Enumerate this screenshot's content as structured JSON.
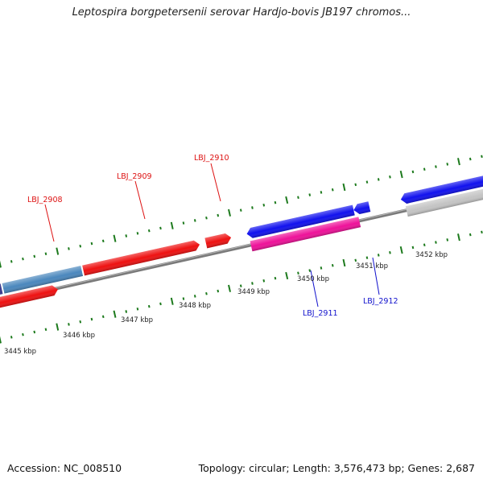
{
  "title": "Leptospira borgpetersenii serovar Hardjo-bovis JB197 chromos...",
  "footer": {
    "accession": "Accession: NC_008510",
    "summary": "Topology: circular; Length: 3,576,473 bp; Genes: 2,687"
  },
  "colors": {
    "backbone": "#7a7a7a",
    "tick": "#1d7a1d",
    "forward_gene_red": "#ee1111",
    "reverse_gene_blue": "#1111ee",
    "reverse_gene_pink": "#ee1199",
    "steelblue_gene": "#4a87bd",
    "navy_gene": "#3f3f8f",
    "grey_feature": "#c4c4c4",
    "label_red": "#dd1111",
    "label_blue": "#1111cc"
  },
  "scale": {
    "unit": "kbp",
    "tick_labels": [
      "3445 kbp",
      "3446 kbp",
      "3447 kbp",
      "3448 kbp",
      "3449 kbp",
      "3450 kbp",
      "3451 kbp",
      "3452 kbp"
    ]
  },
  "gene_labels": [
    {
      "name": "LBJ_2908",
      "strand": "forward",
      "color": "label_red"
    },
    {
      "name": "LBJ_2909",
      "strand": "forward",
      "color": "label_red"
    },
    {
      "name": "LBJ_2910",
      "strand": "forward",
      "color": "label_red"
    },
    {
      "name": "LBJ_2911",
      "strand": "reverse",
      "color": "label_blue"
    },
    {
      "name": "LBJ_2912",
      "strand": "reverse",
      "color": "label_blue"
    }
  ]
}
